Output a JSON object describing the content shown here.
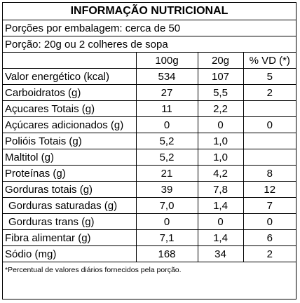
{
  "header": {
    "title": "INFORMAÇÃO NUTRICIONAL",
    "servings": "Porções por embalagem: cerca de 50",
    "portion": "Porção: 20g ou 2 colheres de sopa"
  },
  "table": {
    "columns": [
      "100g",
      "20g",
      "% VD (*)"
    ],
    "rows": [
      [
        "Valor energético (kcal)",
        "534",
        "107",
        "5"
      ],
      [
        "Carboidratos (g)",
        "27",
        "5,5",
        "2"
      ],
      [
        "Açucares Totais (g)",
        "11",
        "2,2",
        null
      ],
      [
        "Açúcares adicionados (g)",
        "0",
        "0",
        "0"
      ],
      [
        "Polióis Totais (g)",
        "5,2",
        "1,0",
        null
      ],
      [
        "Maltitol (g)",
        "5,2",
        "1,0",
        null
      ],
      [
        "Proteínas (g)",
        "21",
        "4,2",
        "8"
      ],
      [
        "Gorduras totais (g)",
        "39",
        "7,8",
        "12"
      ],
      [
        "Gorduras saturadas (g)",
        "7,0",
        "1,4",
        "7"
      ],
      [
        "Gorduras trans (g)",
        "0",
        "0",
        "0"
      ],
      [
        "Fibra alimentar (g)",
        "7,1",
        "1,4",
        "6"
      ],
      [
        "Sódio (mg)",
        "168",
        "34",
        "2"
      ]
    ]
  },
  "footer": "*Percentual de valores diários fornecidos pela porção."
}
